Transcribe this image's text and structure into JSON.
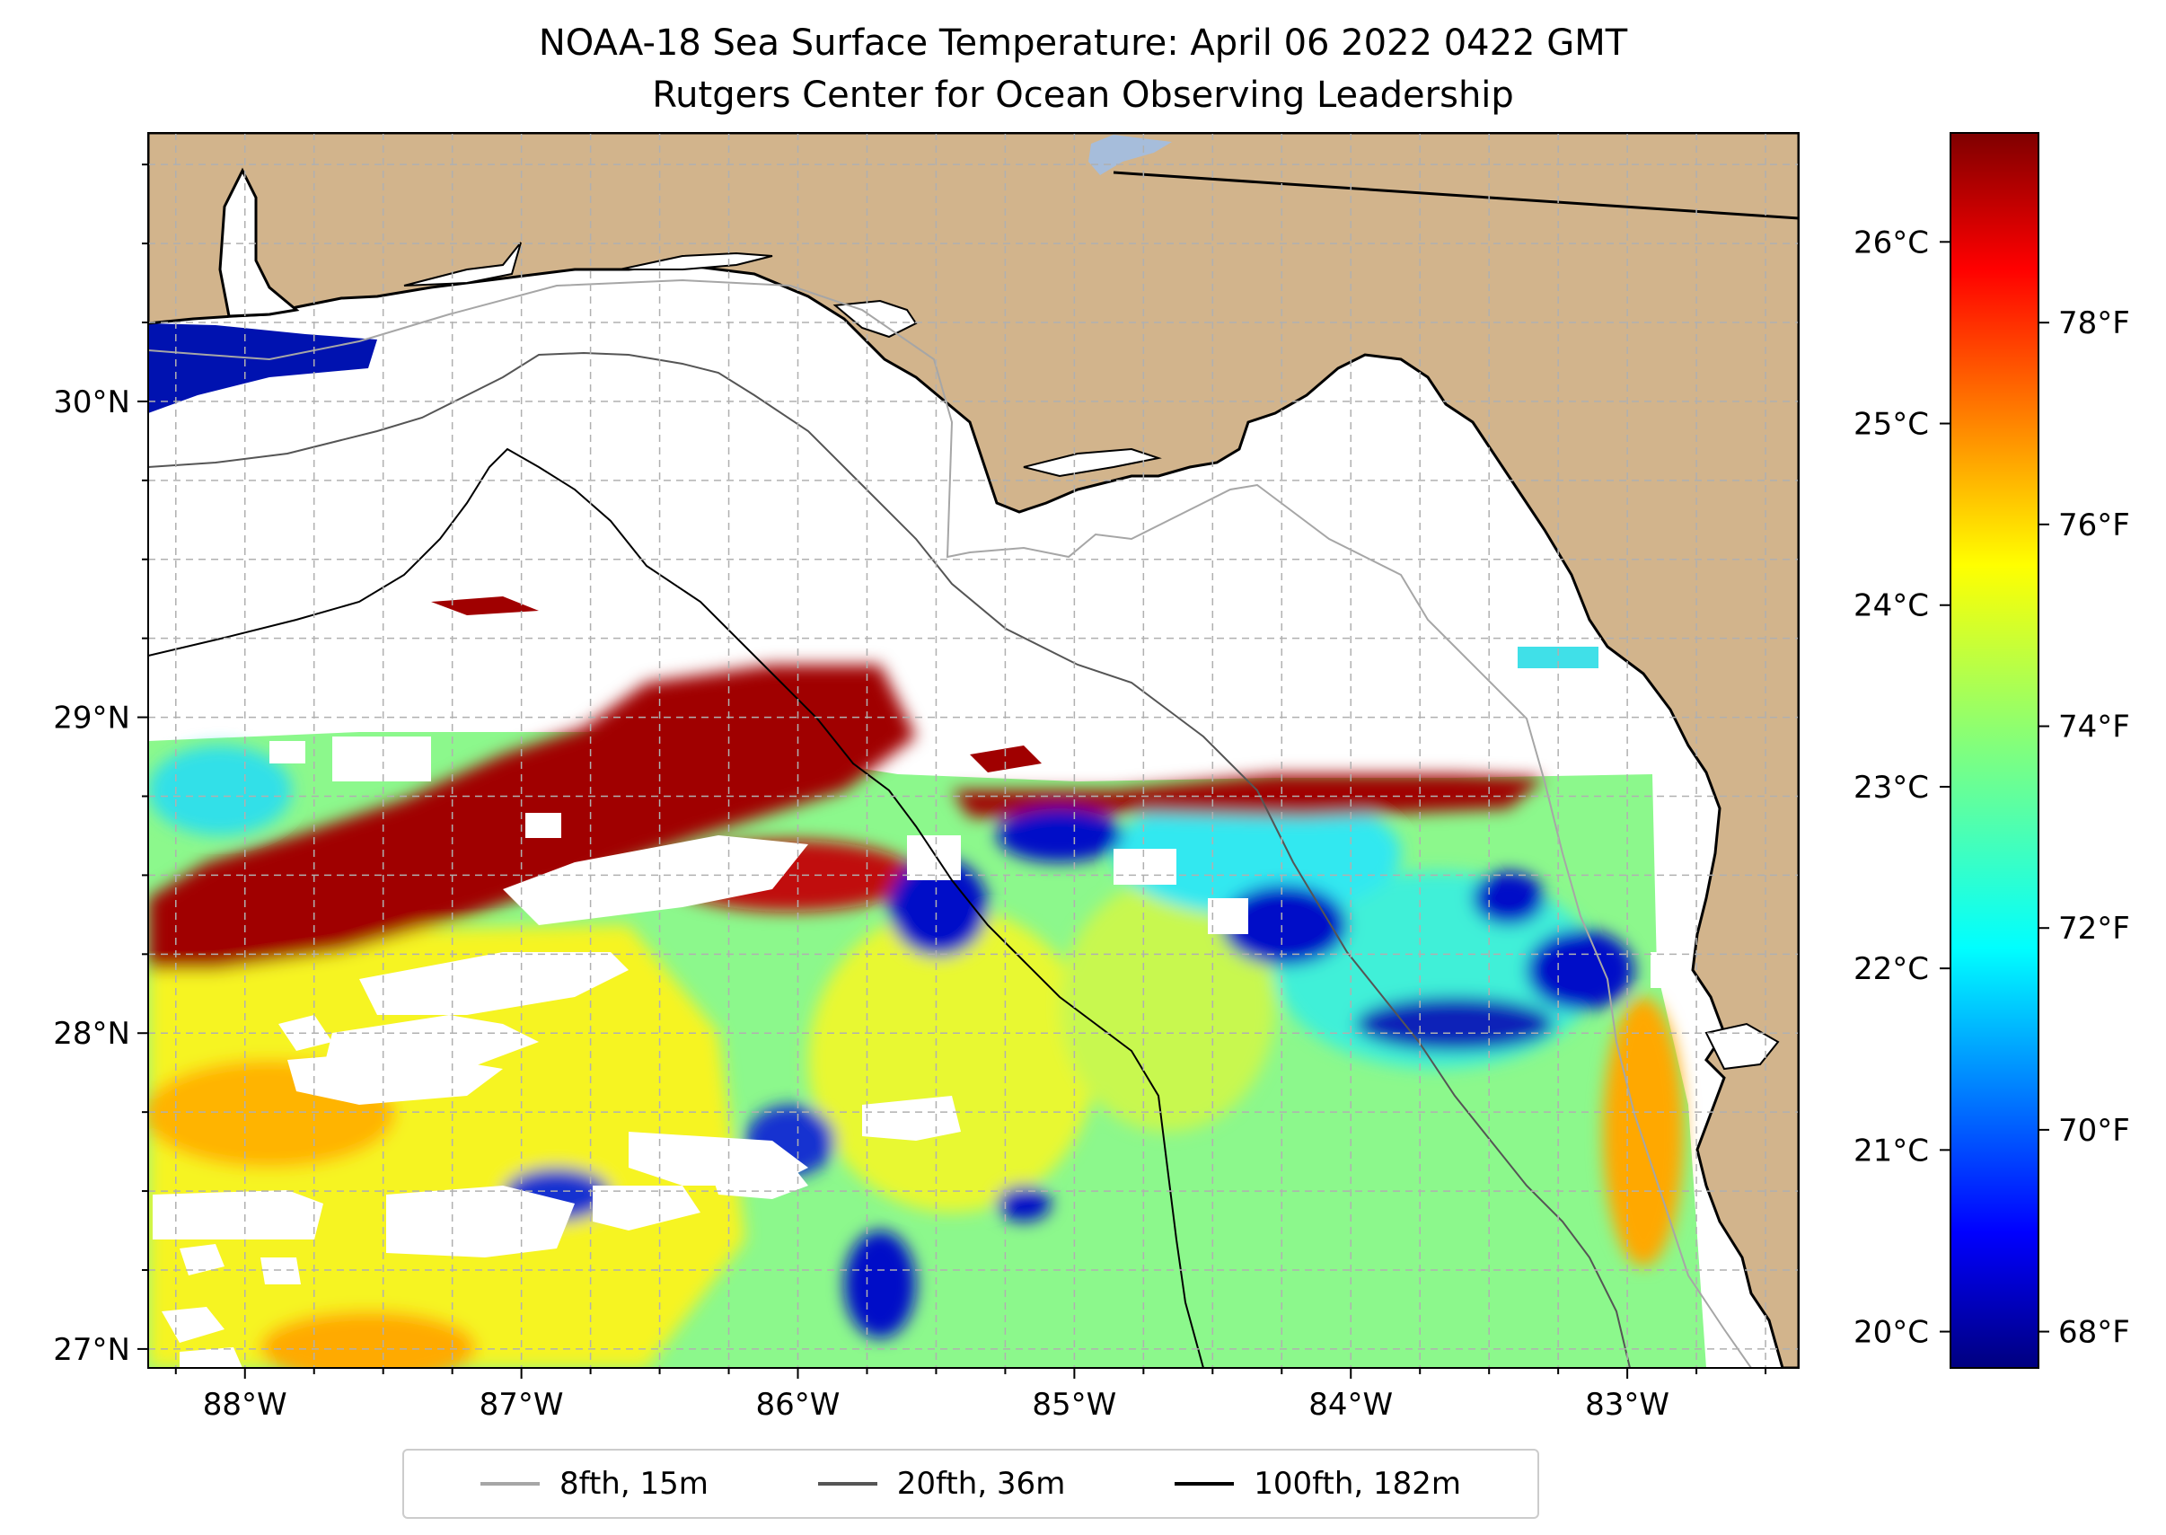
{
  "title": {
    "line1": "NOAA-18 Sea Surface Temperature: April 06 2022 0422 GMT",
    "line2": "Rutgers Center for Ocean Observing Leadership"
  },
  "map": {
    "extent": {
      "lon_min": -88.35,
      "lon_max": -82.38,
      "lat_min": 26.94,
      "lat_max": 30.85
    },
    "colors": {
      "land": "#d2b48c",
      "coast": "#000000",
      "no_data": "#ffffff",
      "gridline": "#b0b0b0",
      "lake": "#a6bddb"
    },
    "lon_ticks": [
      {
        "value": -88,
        "label": "88°W"
      },
      {
        "value": -87,
        "label": "87°W"
      },
      {
        "value": -86,
        "label": "86°W"
      },
      {
        "value": -85,
        "label": "85°W"
      },
      {
        "value": -84,
        "label": "84°W"
      },
      {
        "value": -83,
        "label": "83°W"
      }
    ],
    "lat_ticks": [
      {
        "value": 30,
        "label": "30°N"
      },
      {
        "value": 29,
        "label": "29°N"
      },
      {
        "value": 28,
        "label": "28°N"
      },
      {
        "value": 27,
        "label": "27°N"
      }
    ]
  },
  "colorbar": {
    "colormap": "jet",
    "range_c": [
      19.8,
      26.6
    ],
    "celsius_ticks": [
      {
        "value": 20,
        "label": "20°C"
      },
      {
        "value": 21,
        "label": "21°C"
      },
      {
        "value": 22,
        "label": "22°C"
      },
      {
        "value": 23,
        "label": "23°C"
      },
      {
        "value": 24,
        "label": "24°C"
      },
      {
        "value": 25,
        "label": "25°C"
      },
      {
        "value": 26,
        "label": "26°C"
      }
    ],
    "fahrenheit_ticks": [
      {
        "value": 68,
        "label": "68°F"
      },
      {
        "value": 70,
        "label": "70°F"
      },
      {
        "value": 72,
        "label": "72°F"
      },
      {
        "value": 74,
        "label": "74°F"
      },
      {
        "value": 76,
        "label": "76°F"
      },
      {
        "value": 78,
        "label": "78°F"
      }
    ]
  },
  "legend": {
    "placement": "below",
    "items": [
      {
        "label": "8fth, 15m",
        "color": "#a6a6a6"
      },
      {
        "label": "20fth, 36m",
        "color": "#555555"
      },
      {
        "label": "100fth, 182m",
        "color": "#000000"
      }
    ]
  }
}
